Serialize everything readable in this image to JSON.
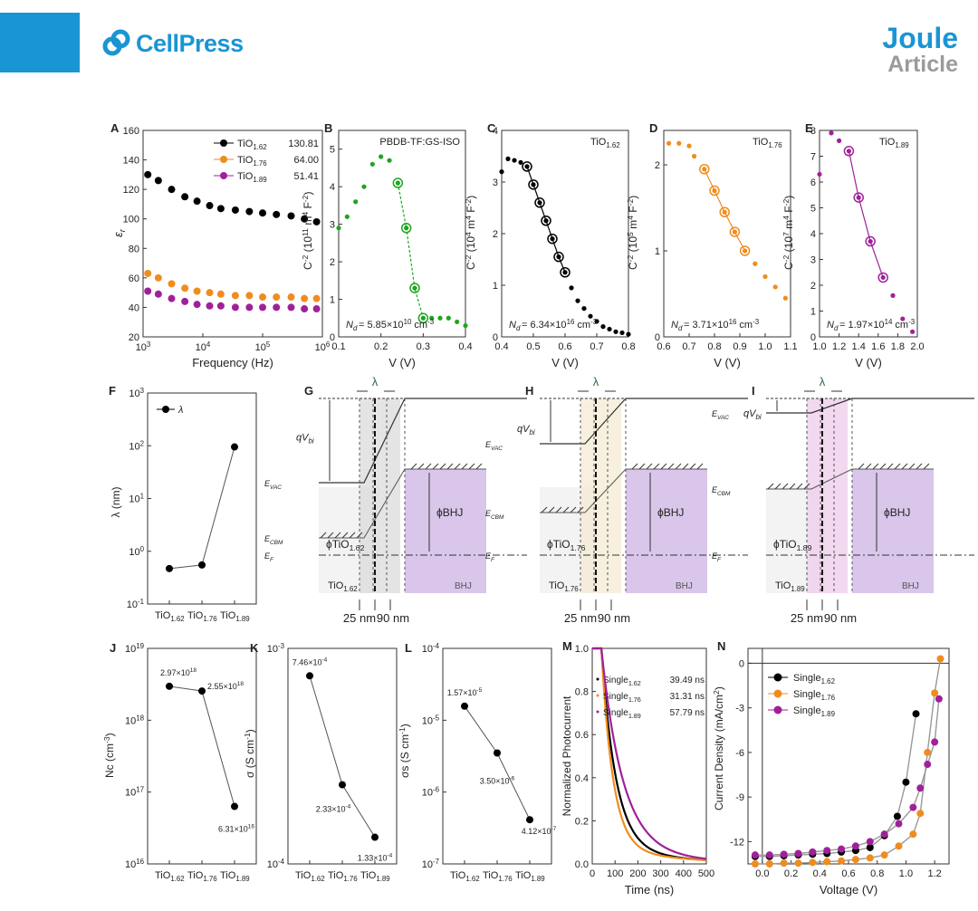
{
  "header": {
    "brand": "CellPress",
    "journal": "Joule",
    "article_type": "Article"
  },
  "chart_data": [
    {
      "panel": "A",
      "type": "scatter",
      "xlabel": "Frequency (Hz)",
      "ylabel": "εr",
      "xscale": "log",
      "xlim": [
        1000,
        1000000
      ],
      "ylim": [
        20,
        160
      ],
      "series": [
        {
          "name": "TiO1.62",
          "value_label": "130.81",
          "color": "#000000",
          "x": [
            1200,
            1800,
            3000,
            5000,
            8000,
            13000,
            20000,
            35000,
            60000,
            100000,
            170000,
            300000,
            500000,
            800000
          ],
          "y": [
            130,
            126,
            120,
            115,
            112,
            109,
            107,
            106,
            105,
            104,
            103,
            102,
            100,
            98
          ]
        },
        {
          "name": "TiO1.76",
          "value_label": "64.00",
          "color": "#f08c1e",
          "x": [
            1200,
            1800,
            3000,
            5000,
            8000,
            13000,
            20000,
            35000,
            60000,
            100000,
            170000,
            300000,
            500000,
            800000
          ],
          "y": [
            63,
            60,
            56,
            53,
            51,
            50,
            49,
            48,
            48,
            47,
            47,
            47,
            46,
            46
          ]
        },
        {
          "name": "TiO1.89",
          "value_label": "51.41",
          "color": "#a0209a",
          "x": [
            1200,
            1800,
            3000,
            5000,
            8000,
            13000,
            20000,
            35000,
            60000,
            100000,
            170000,
            300000,
            500000,
            800000
          ],
          "y": [
            51,
            49,
            46,
            44,
            42,
            41,
            41,
            40,
            40,
            40,
            40,
            40,
            39,
            39
          ]
        }
      ]
    },
    {
      "panel": "B",
      "type": "scatter",
      "title": "PBDB-TF:GS-ISO",
      "xlabel": "V (V)",
      "ylabel": "C^-2 (10^11 m^4 F^-2)",
      "xlim": [
        0.1,
        0.4
      ],
      "ylim": [
        0,
        5.5
      ],
      "color": "#1fa51f",
      "annotation": "Nd = 5.85×10^10 cm^-3",
      "x": [
        0.1,
        0.12,
        0.14,
        0.16,
        0.18,
        0.2,
        0.22,
        0.24,
        0.26,
        0.28,
        0.3,
        0.32,
        0.34,
        0.36,
        0.38,
        0.4
      ],
      "y": [
        2.9,
        3.2,
        3.6,
        4.0,
        4.6,
        4.8,
        4.7,
        4.1,
        2.9,
        1.3,
        0.5,
        0.5,
        0.5,
        0.5,
        0.4,
        0.3
      ],
      "fit_x": [
        0.24,
        0.26,
        0.28,
        0.3
      ],
      "fit_y": [
        4.1,
        2.9,
        1.3,
        0.5
      ]
    },
    {
      "panel": "C",
      "type": "scatter",
      "title": "TiO1.62",
      "xlabel": "V (V)",
      "ylabel": "C^-2 (10^4 m^4 F^-2)",
      "xlim": [
        0.4,
        0.8
      ],
      "ylim": [
        0,
        4
      ],
      "color": "#000000",
      "annotation": "Nd = 6.34×10^16 cm^-3",
      "x": [
        0.4,
        0.42,
        0.44,
        0.46,
        0.48,
        0.5,
        0.52,
        0.54,
        0.56,
        0.58,
        0.6,
        0.62,
        0.64,
        0.66,
        0.68,
        0.7,
        0.72,
        0.74,
        0.76,
        0.78,
        0.8
      ],
      "y": [
        3.2,
        3.45,
        3.42,
        3.38,
        3.3,
        2.95,
        2.6,
        2.25,
        1.9,
        1.55,
        1.25,
        0.95,
        0.7,
        0.55,
        0.4,
        0.3,
        0.2,
        0.15,
        0.1,
        0.08,
        0.05
      ],
      "fit_x": [
        0.48,
        0.5,
        0.52,
        0.54,
        0.56,
        0.58,
        0.6
      ],
      "fit_y": [
        3.3,
        2.95,
        2.6,
        2.25,
        1.9,
        1.55,
        1.25
      ]
    },
    {
      "panel": "D",
      "type": "scatter",
      "title": "TiO1.76",
      "xlabel": "V (V)",
      "ylabel": "C^-2 (10^5 m^4 F^-2)",
      "xlim": [
        0.6,
        1.1
      ],
      "ylim": [
        0,
        2.4
      ],
      "color": "#f08c1e",
      "annotation": "Nd = 3.71×10^16 cm^-3",
      "x": [
        0.62,
        0.66,
        0.7,
        0.72,
        0.76,
        0.8,
        0.84,
        0.88,
        0.92,
        0.96,
        1.0,
        1.04,
        1.08
      ],
      "y": [
        2.25,
        2.25,
        2.22,
        2.1,
        1.95,
        1.7,
        1.45,
        1.22,
        1.0,
        0.85,
        0.7,
        0.58,
        0.45
      ],
      "fit_x": [
        0.76,
        0.8,
        0.84,
        0.88,
        0.92
      ],
      "fit_y": [
        1.95,
        1.7,
        1.45,
        1.22,
        1.0
      ]
    },
    {
      "panel": "E",
      "type": "scatter",
      "title": "TiO1.89",
      "xlabel": "V (V)",
      "ylabel": "C^-2 (10^7 m^4 F^-2)",
      "xlim": [
        1.0,
        2.0
      ],
      "ylim": [
        0,
        8
      ],
      "color": "#a0209a",
      "annotation": "Nd = 1.97×10^14 cm^-3",
      "x": [
        1.0,
        1.12,
        1.2,
        1.3,
        1.4,
        1.52,
        1.65,
        1.75,
        1.85,
        1.95
      ],
      "y": [
        6.3,
        7.9,
        7.6,
        7.2,
        5.4,
        3.7,
        2.3,
        1.6,
        0.7,
        0.2
      ],
      "fit_x": [
        1.3,
        1.4,
        1.52,
        1.65
      ],
      "fit_y": [
        7.2,
        5.4,
        3.7,
        2.3
      ]
    },
    {
      "panel": "F",
      "type": "line",
      "ylabel": "λ (nm)",
      "yscale": "log",
      "ylim": [
        0.1,
        1000
      ],
      "categories": [
        "TiO1.62",
        "TiO1.76",
        "TiO1.89"
      ],
      "series": [
        {
          "name": "λ",
          "values": [
            0.47,
            0.55,
            95
          ]
        }
      ]
    },
    {
      "panel": "J",
      "type": "line",
      "ylabel": "Nc (cm^-3)",
      "yscale": "log",
      "ylim": [
        1e+16,
        1e+19
      ],
      "categories": [
        "TiO1.62",
        "TiO1.76",
        "TiO1.89"
      ],
      "values": [
        2.97e+18,
        2.55e+18,
        6.31e+16
      ],
      "labels": [
        "2.97×10^18",
        "2.55×10^18",
        "6.31×10^16"
      ]
    },
    {
      "panel": "K",
      "type": "line",
      "ylabel": "σ (S cm^-1)",
      "yscale": "log",
      "ylim": [
        0.0001,
        0.001
      ],
      "categories": [
        "TiO1.62",
        "TiO1.76",
        "TiO1.89"
      ],
      "values": [
        0.000746,
        0.000233,
        0.000133
      ],
      "labels": [
        "7.46×10^-4",
        "2.33×10^-4",
        "1.33×10^-4"
      ]
    },
    {
      "panel": "L",
      "type": "line",
      "ylabel": "σs (S cm^-1)",
      "yscale": "log",
      "ylim": [
        1e-07,
        0.0001
      ],
      "categories": [
        "TiO1.62",
        "TiO1.76",
        "TiO1.89"
      ],
      "values": [
        1.57e-05,
        3.5e-06,
        4.12e-07
      ],
      "labels": [
        "1.57×10^-5",
        "3.50×10^-6",
        "4.12×10^-7"
      ]
    },
    {
      "panel": "M",
      "type": "line",
      "xlabel": "Time (ns)",
      "ylabel": "Normalized Photocurrent",
      "xlim": [
        0,
        500
      ],
      "ylim": [
        0,
        1.0
      ],
      "series": [
        {
          "name": "Single1.62",
          "tau_label": "39.49 ns",
          "tau": 39.49,
          "color": "#000000"
        },
        {
          "name": "Single1.76",
          "tau_label": "31.31 ns",
          "tau": 31.31,
          "color": "#f08c1e"
        },
        {
          "name": "Single1.89",
          "tau_label": "57.79 ns",
          "tau": 57.79,
          "color": "#a0209a"
        }
      ]
    },
    {
      "panel": "N",
      "type": "scatter",
      "xlabel": "Voltage (V)",
      "ylabel": "Current Density (mA/cm^2)",
      "xlim": [
        -0.1,
        1.3
      ],
      "ylim": [
        -13.5,
        1
      ],
      "x": [
        -0.05,
        0.05,
        0.15,
        0.25,
        0.35,
        0.45,
        0.55,
        0.65,
        0.75,
        0.85,
        0.95,
        1.0,
        1.05,
        1.1,
        1.15,
        1.2
      ],
      "series": [
        {
          "name": "Single1.62",
          "color": "#000000",
          "x": [
            -0.05,
            0.05,
            0.15,
            0.25,
            0.35,
            0.45,
            0.55,
            0.65,
            0.75,
            0.85,
            0.94,
            1.0,
            1.07
          ],
          "y": [
            -13.0,
            -13.0,
            -12.95,
            -12.9,
            -12.85,
            -12.8,
            -12.7,
            -12.6,
            -12.4,
            -11.6,
            -10.3,
            -8.0,
            -3.4
          ]
        },
        {
          "name": "Single1.76",
          "color": "#f08c1e",
          "x": [
            -0.05,
            0.05,
            0.15,
            0.25,
            0.35,
            0.45,
            0.55,
            0.65,
            0.75,
            0.85,
            0.95,
            1.05,
            1.1,
            1.15,
            1.2,
            1.24
          ],
          "y": [
            -13.5,
            -13.5,
            -13.45,
            -13.45,
            -13.4,
            -13.35,
            -13.3,
            -13.2,
            -13.1,
            -12.9,
            -12.3,
            -11.5,
            -10.1,
            -6.0,
            -2.0,
            0.3
          ]
        },
        {
          "name": "Single1.89",
          "color": "#a0209a",
          "x": [
            -0.05,
            0.05,
            0.15,
            0.25,
            0.35,
            0.45,
            0.55,
            0.65,
            0.75,
            0.85,
            0.95,
            1.05,
            1.1,
            1.15,
            1.2,
            1.23
          ],
          "y": [
            -12.9,
            -12.9,
            -12.85,
            -12.8,
            -12.7,
            -12.6,
            -12.5,
            -12.3,
            -12.0,
            -11.5,
            -10.8,
            -9.7,
            -8.4,
            -6.8,
            -5.3,
            -2.4
          ]
        }
      ]
    }
  ],
  "diagrams": {
    "lambda": "λ",
    "qvbi": "qVbi",
    "evac": "EVAC",
    "ecbm": "ECBM",
    "ef": "EF",
    "phi_bhj": "ϕBHJ",
    "bhj": "BHJ",
    "dim_left": "25 nm",
    "dim_right": "90 nm",
    "G": {
      "label": "G",
      "phi": "ϕTiO1.62",
      "layer": "TiO1.62"
    },
    "H": {
      "label": "H",
      "phi": "ϕTiO1.76",
      "layer": "TiO1.76"
    },
    "I": {
      "label": "I",
      "phi": "ϕTiO1.89",
      "layer": "TiO1.89"
    }
  }
}
